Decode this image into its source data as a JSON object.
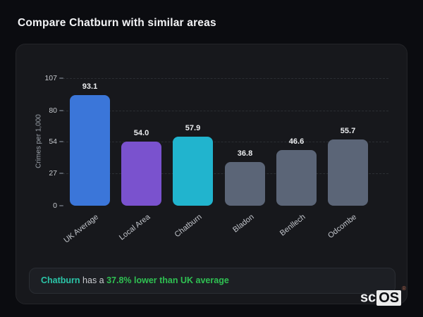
{
  "page": {
    "title": "Compare Chatburn with similar areas"
  },
  "chart_data": {
    "type": "bar",
    "title": "Compare Chatburn with similar areas",
    "categories": [
      "UK Average",
      "Local Area",
      "Chatburn",
      "Bladon",
      "Benllech",
      "Odcombe"
    ],
    "values": [
      93.1,
      54.0,
      57.9,
      36.8,
      46.6,
      55.7
    ],
    "value_labels": [
      "93.1",
      "54.0",
      "57.9",
      "36.8",
      "46.6",
      "55.7"
    ],
    "bar_colors": [
      "#3b76d9",
      "#7a52ce",
      "#21b4ce",
      "#5b6577",
      "#5b6577",
      "#5b6577"
    ],
    "xlabel": "",
    "ylabel": "Crimes per 1,000",
    "yticks": [
      0,
      27,
      54,
      80,
      107
    ],
    "ytick_labels": [
      "0",
      "27",
      "54",
      "80",
      "107"
    ],
    "ylim": [
      0,
      107
    ],
    "grid": "horizontal-dashed",
    "legend": "none"
  },
  "note": {
    "subject": "Chatburn",
    "middle": " has a ",
    "highlight": "37.8% lower than UK average"
  },
  "logo": {
    "prefix": "sc",
    "suffix": "OS",
    "registered": "®"
  },
  "colors": {
    "background": "#0b0c10",
    "card_background": "#17181c",
    "note_background": "#1d1f24",
    "bar_highlight_blue": "#3b76d9",
    "bar_highlight_purple": "#7a52ce",
    "bar_highlight_teal": "#21b4ce",
    "bar_neutral_gray": "#5b6577",
    "note_subject_color": "#2bc5a8",
    "note_highlight_color": "#2fc052"
  }
}
